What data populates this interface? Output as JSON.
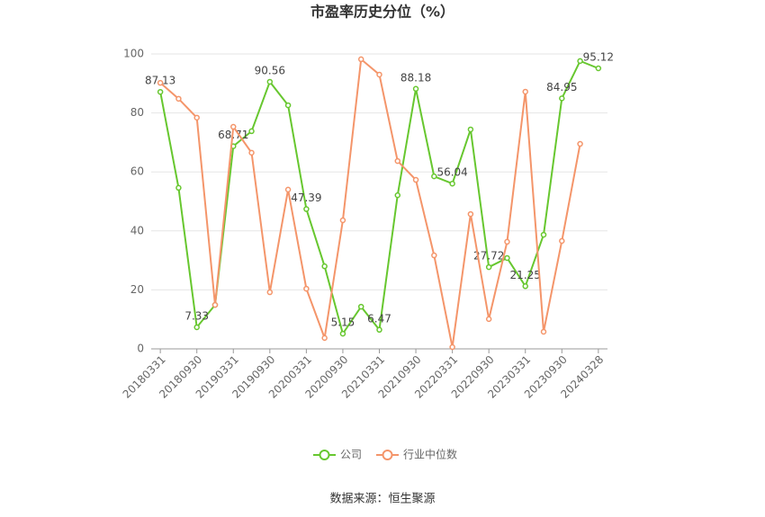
{
  "chart_data": {
    "type": "line",
    "title": "市盈率历史分位（%）",
    "categories": [
      "20180331",
      null,
      "20180930",
      null,
      "20190331",
      null,
      "20190930",
      null,
      "20200331",
      null,
      "20200930",
      null,
      "20210331",
      null,
      "20210930",
      null,
      "20220331",
      null,
      "20220930",
      null,
      "20230331",
      null,
      "20230930",
      null,
      "20240328"
    ],
    "series": [
      {
        "name": "公司",
        "color": "#67c72f",
        "values": [
          87.13,
          54.6,
          7.33,
          14.9,
          68.71,
          73.8,
          90.56,
          82.6,
          47.39,
          28.0,
          5.15,
          14.3,
          6.47,
          52.1,
          88.18,
          58.5,
          56.04,
          74.4,
          27.72,
          30.8,
          21.25,
          38.7,
          84.95,
          97.6,
          95.12
        ],
        "value_labels": [
          "87.13",
          null,
          "7.33",
          null,
          "68.71",
          null,
          "90.56",
          null,
          "47.39",
          null,
          "5.15",
          null,
          "6.47",
          null,
          "88.18",
          null,
          "56.04",
          null,
          "27.72",
          null,
          "21.25",
          null,
          "84.95",
          null,
          "95.12"
        ]
      },
      {
        "name": "行业中位数",
        "color": "#f4956a",
        "values": [
          90.2,
          84.8,
          78.4,
          14.9,
          75.3,
          66.5,
          19.2,
          54.0,
          20.4,
          3.7,
          43.6,
          98.2,
          93.0,
          63.7,
          57.3,
          31.7,
          0.6,
          45.7,
          10.1,
          36.3,
          87.2,
          5.8,
          36.6,
          69.5,
          null
        ]
      }
    ],
    "ylim": [
      0,
      100
    ],
    "yticks": [
      0,
      20,
      40,
      60,
      80,
      100
    ],
    "grid": true,
    "source": "数据来源：恒生聚源"
  }
}
